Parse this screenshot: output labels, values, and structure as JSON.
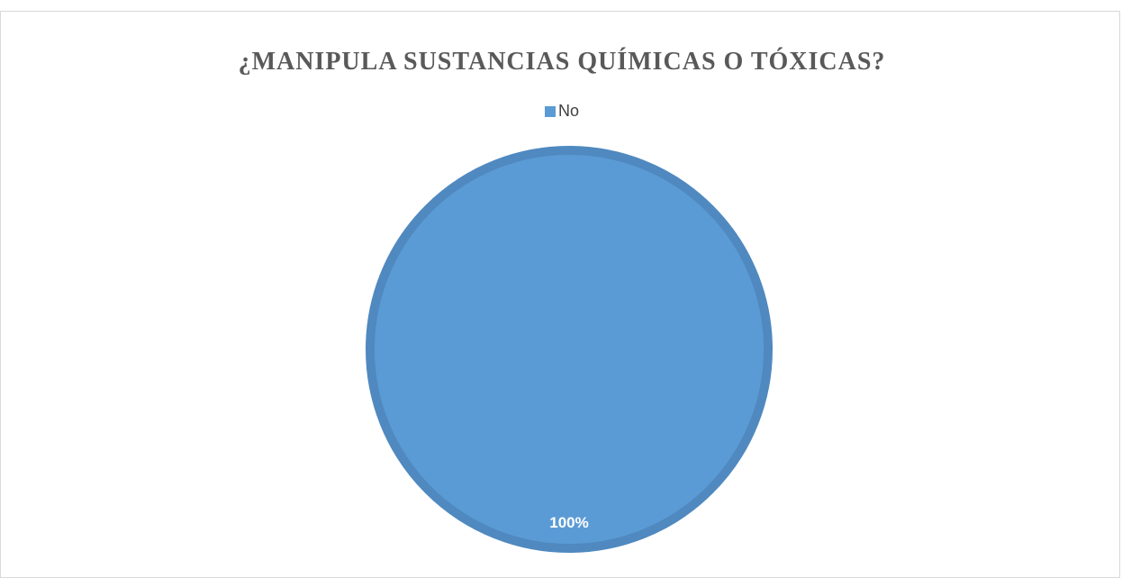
{
  "chart_data": {
    "type": "pie",
    "title": "¿MANIPULA SUSTANCIAS QUÍMICAS O TÓXICAS?",
    "categories": [
      "No"
    ],
    "values": [
      100
    ],
    "data_labels": [
      "100%"
    ],
    "legend_position": "top",
    "colors": {
      "No": "#5b9bd5",
      "No_border": "#4f89c0"
    }
  }
}
